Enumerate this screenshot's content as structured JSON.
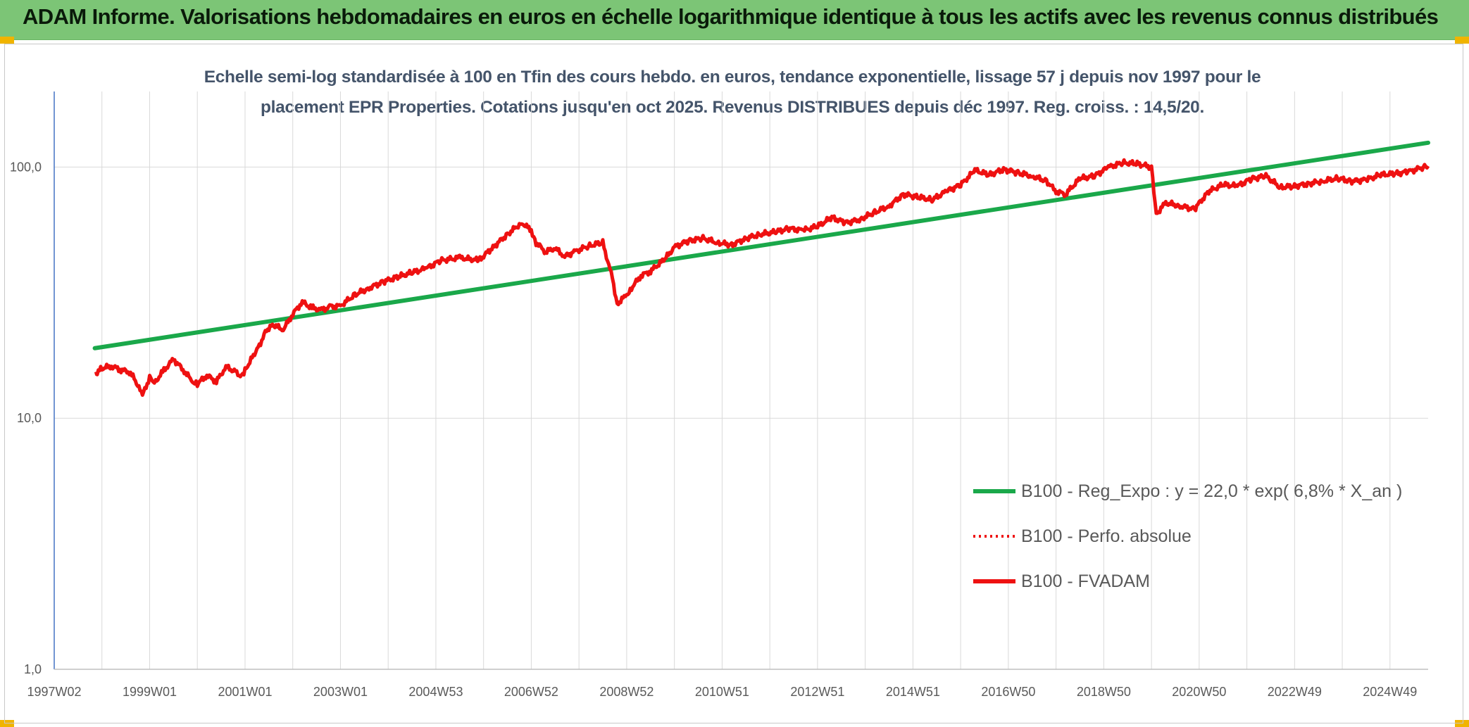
{
  "banner": {
    "title": "ADAM Informe. Valorisations hebdomadaires en euros en échelle logarithmique identique à tous les actifs avec les revenus connus distribués"
  },
  "colors": {
    "banner_bg": "#7cc576",
    "regression": "#1aa84a",
    "series": "#ee1111",
    "axis": "#4472c4",
    "grid": "#d9d9d9"
  },
  "chart_data": {
    "type": "line",
    "title_line1": "Echelle semi-log standardisée à 100 en Tfin des cours hebdo. en euros, tendance exponentielle, lissage 57 j depuis nov 1997 pour le",
    "title_line2": "placement EPR Properties. Cotations jusqu'en oct 2025. Revenus DISTRIBUES depuis déc 1997. Reg. croiss. : 14,5/20.",
    "y_scale": "log",
    "ylim": [
      1,
      200
    ],
    "xlim": [
      1997.0,
      2025.8
    ],
    "y_ticks": [
      {
        "value": 1,
        "label": "1,0"
      },
      {
        "value": 10,
        "label": "10,0"
      },
      {
        "value": 100,
        "label": "100,0"
      }
    ],
    "x_ticks": [
      {
        "value": 1997.0,
        "label": "1997W02"
      },
      {
        "value": 1999.0,
        "label": "1999W01"
      },
      {
        "value": 2001.0,
        "label": "2001W01"
      },
      {
        "value": 2003.0,
        "label": "2003W01"
      },
      {
        "value": 2005.0,
        "label": "2004W53"
      },
      {
        "value": 2007.0,
        "label": "2006W52"
      },
      {
        "value": 2009.0,
        "label": "2008W52"
      },
      {
        "value": 2011.0,
        "label": "2010W51"
      },
      {
        "value": 2013.0,
        "label": "2012W51"
      },
      {
        "value": 2015.0,
        "label": "2014W51"
      },
      {
        "value": 2017.0,
        "label": "2016W50"
      },
      {
        "value": 2019.0,
        "label": "2018W50"
      },
      {
        "value": 2021.0,
        "label": "2020W50"
      },
      {
        "value": 2023.0,
        "label": "2022W49"
      },
      {
        "value": 2025.0,
        "label": "2024W49"
      }
    ],
    "grid": "vertical",
    "legend_position": "right",
    "series": [
      {
        "name": "B100 - Reg_Expo : y = 22,0 * exp( 6,8% *  X_an )",
        "style": "solid-green",
        "x": [
          1997.85,
          2025.8
        ],
        "values": [
          19,
          125
        ]
      },
      {
        "name": "B100 - Perfo. absolue",
        "style": "dotted-red",
        "x": [],
        "values": []
      },
      {
        "name": "B100 - FVADAM",
        "style": "solid-red",
        "x": [
          1997.85,
          1998.0,
          1998.2,
          1998.4,
          1998.6,
          1998.75,
          1998.85,
          1999.0,
          1999.1,
          1999.3,
          1999.5,
          1999.7,
          1999.9,
          2000.0,
          2000.2,
          2000.4,
          2000.6,
          2000.8,
          2000.9,
          2001.0,
          2001.15,
          2001.3,
          2001.45,
          2001.6,
          2001.8,
          2002.0,
          2002.2,
          2002.4,
          2002.6,
          2002.8,
          2003.0,
          2003.3,
          2003.6,
          2003.9,
          2004.2,
          2004.5,
          2004.8,
          2005.1,
          2005.5,
          2005.9,
          2006.2,
          2006.5,
          2006.8,
          2007.0,
          2007.1,
          2007.3,
          2007.5,
          2007.7,
          2007.9,
          2008.2,
          2008.5,
          2008.7,
          2008.8,
          2009.0,
          2009.1,
          2009.3,
          2009.5,
          2009.8,
          2010.0,
          2010.3,
          2010.6,
          2010.9,
          2011.2,
          2011.5,
          2011.8,
          2012.1,
          2012.4,
          2012.7,
          2013.0,
          2013.3,
          2013.6,
          2013.9,
          2014.2,
          2014.5,
          2014.8,
          2015.1,
          2015.4,
          2015.7,
          2016.0,
          2016.3,
          2016.6,
          2016.9,
          2017.2,
          2017.5,
          2017.8,
          2018.0,
          2018.2,
          2018.5,
          2018.8,
          2019.1,
          2019.4,
          2019.7,
          2020.0,
          2020.1,
          2020.3,
          2020.6,
          2020.9,
          2021.2,
          2021.5,
          2021.8,
          2022.1,
          2022.4,
          2022.7,
          2023.0,
          2023.3,
          2023.6,
          2023.9,
          2024.2,
          2024.5,
          2024.8,
          2025.1,
          2025.4,
          2025.7,
          2025.8
        ],
        "values": [
          15.0,
          15.8,
          16.1,
          15.6,
          15.2,
          13.5,
          12.3,
          14.5,
          13.8,
          15.5,
          17.2,
          15.6,
          14.0,
          13.7,
          14.8,
          14.0,
          16.0,
          15.3,
          14.5,
          15.5,
          17.5,
          19.5,
          22.5,
          23.5,
          22.5,
          26.0,
          29.0,
          27.5,
          27.0,
          27.8,
          28.0,
          31.0,
          33.0,
          35.0,
          36.5,
          38.0,
          39.5,
          42.5,
          43.5,
          42.5,
          48.0,
          54.0,
          60.0,
          56.0,
          50.0,
          46.0,
          47.5,
          44.0,
          46.0,
          48.5,
          50.0,
          36.0,
          28.5,
          31.0,
          33.0,
          37.0,
          38.5,
          43.0,
          48.0,
          51.0,
          52.0,
          50.0,
          49.0,
          52.0,
          54.0,
          55.0,
          57.0,
          56.0,
          58.0,
          63.0,
          60.0,
          62.0,
          66.0,
          70.0,
          78.0,
          76.0,
          74.0,
          80.0,
          85.0,
          97.0,
          93.0,
          98.0,
          95.0,
          92.0,
          88.0,
          80.0,
          78.0,
          90.0,
          92.0,
          100.0,
          104.0,
          103.0,
          100.0,
          65.0,
          72.0,
          70.0,
          68.0,
          80.0,
          85.0,
          84.0,
          90.0,
          92.0,
          83.0,
          84.0,
          86.0,
          88.0,
          90.0,
          88.0,
          89.0,
          93.0,
          94.0,
          96.0,
          100.0,
          101.0
        ]
      }
    ]
  }
}
